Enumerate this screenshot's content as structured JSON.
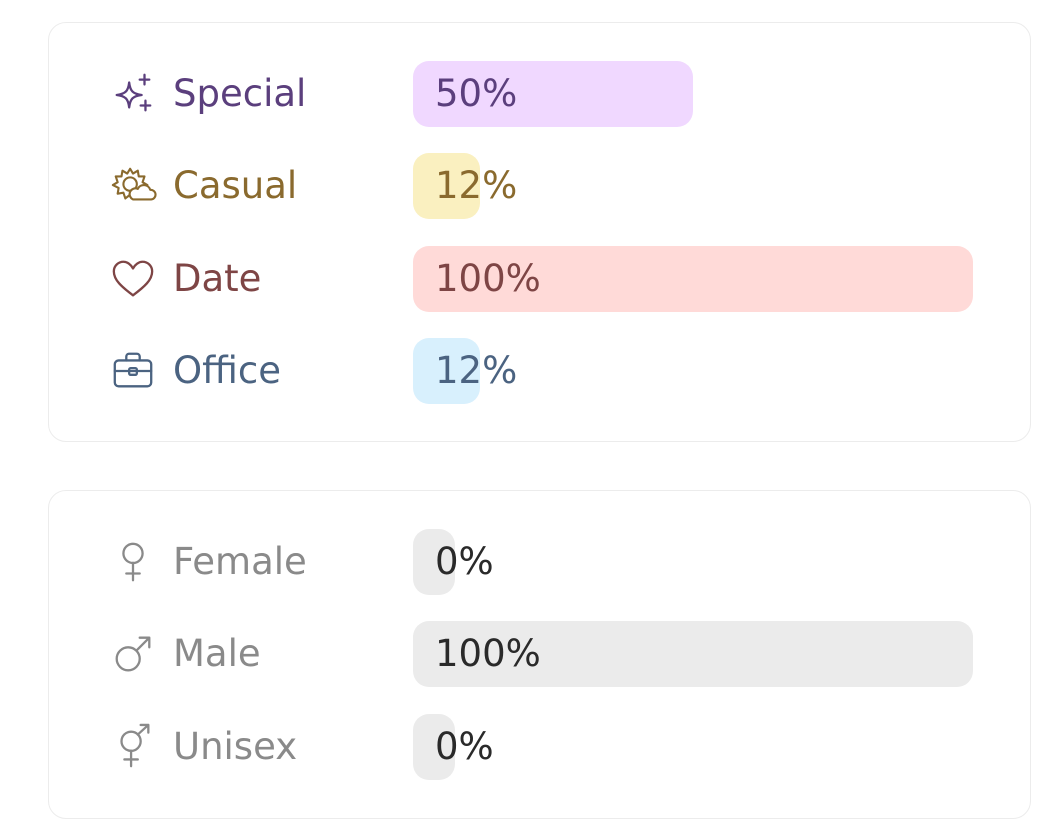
{
  "occasion": {
    "items": [
      {
        "label": "Special",
        "percent_text": "50%",
        "value": 0.5,
        "icon": "sparkles-icon",
        "text_color": "#5b3f7d",
        "bar_color": "#f0d8ff"
      },
      {
        "label": "Casual",
        "percent_text": "12%",
        "value": 0.12,
        "icon": "sun-cloud-icon",
        "text_color": "#8a6a2e",
        "bar_color": "#faf0c0"
      },
      {
        "label": "Date",
        "percent_text": "100%",
        "value": 1.0,
        "icon": "heart-icon",
        "text_color": "#7e4545",
        "bar_color": "#ffdad8"
      },
      {
        "label": "Office",
        "percent_text": "12%",
        "value": 0.12,
        "icon": "briefcase-icon",
        "text_color": "#4b6381",
        "bar_color": "#d8f0fd"
      }
    ]
  },
  "gender": {
    "items": [
      {
        "label": "Female",
        "percent_text": "0%",
        "value": 0.0,
        "icon": "female-symbol-icon",
        "text_color": "#8a8a8a",
        "pct_color": "#2a2a2a",
        "bar_color": "#ebebeb"
      },
      {
        "label": "Male",
        "percent_text": "100%",
        "value": 1.0,
        "icon": "male-symbol-icon",
        "text_color": "#8a8a8a",
        "pct_color": "#2a2a2a",
        "bar_color": "#ebebeb"
      },
      {
        "label": "Unisex",
        "percent_text": "0%",
        "value": 0.0,
        "icon": "unisex-symbol-icon",
        "text_color": "#8a8a8a",
        "pct_color": "#2a2a2a",
        "bar_color": "#ebebeb"
      }
    ]
  }
}
